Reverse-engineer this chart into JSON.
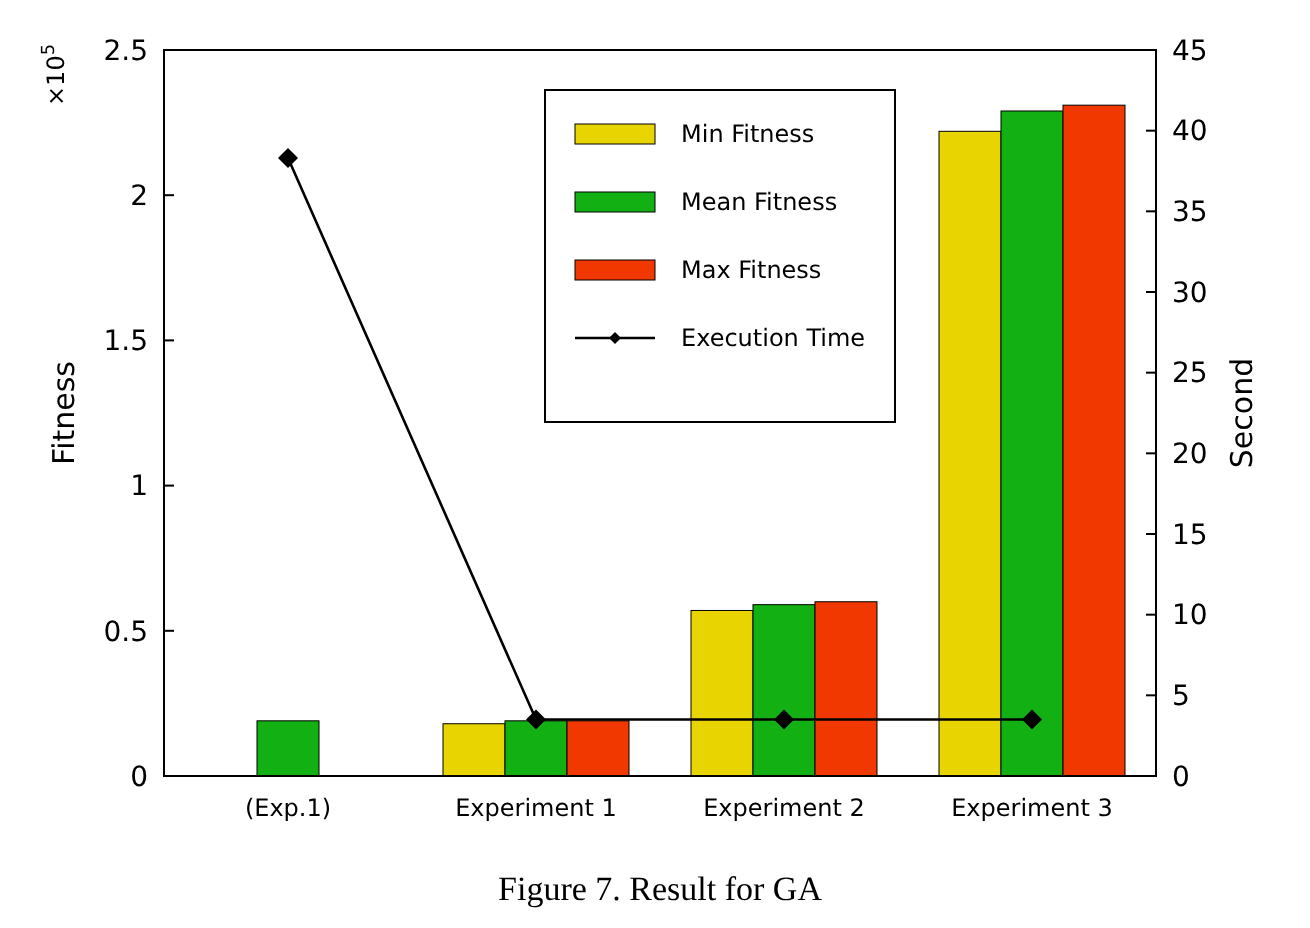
{
  "chart_data": {
    "type": "bar",
    "title": "Figure 7. Result for GA",
    "ylabel": "Fitness",
    "y2label": "Second",
    "annotations": [
      "×10$^{5}$"
    ],
    "categories": [
      "(Exp.1)",
      "Experiment 1",
      "Experiment 2",
      "Experiment 3"
    ],
    "series": [
      {
        "name": "Min Fitness",
        "color": "#e8d400",
        "values": [
          null,
          0.18,
          0.57,
          2.22
        ]
      },
      {
        "name": "Mean Fitness",
        "color": "#12b012",
        "values": [
          0.19,
          0.19,
          0.59,
          2.29
        ]
      },
      {
        "name": "Max Fitness",
        "color": "#f03800",
        "values": [
          null,
          0.19,
          0.6,
          2.31
        ]
      },
      {
        "name": "Execution Time",
        "type": "line",
        "axis": "y2",
        "color": "#000000",
        "marker": "diamond",
        "values": [
          38.3,
          3.5,
          3.5,
          3.5
        ]
      }
    ],
    "ylim": [
      0,
      2.5
    ],
    "yticks": [
      0,
      0.5,
      1,
      1.5,
      2,
      2.5
    ],
    "y2lim": [
      0,
      45
    ],
    "y2ticks": [
      0,
      5,
      10,
      15,
      20,
      25,
      30,
      35,
      40,
      45
    ],
    "legend": "top",
    "grid": false
  }
}
